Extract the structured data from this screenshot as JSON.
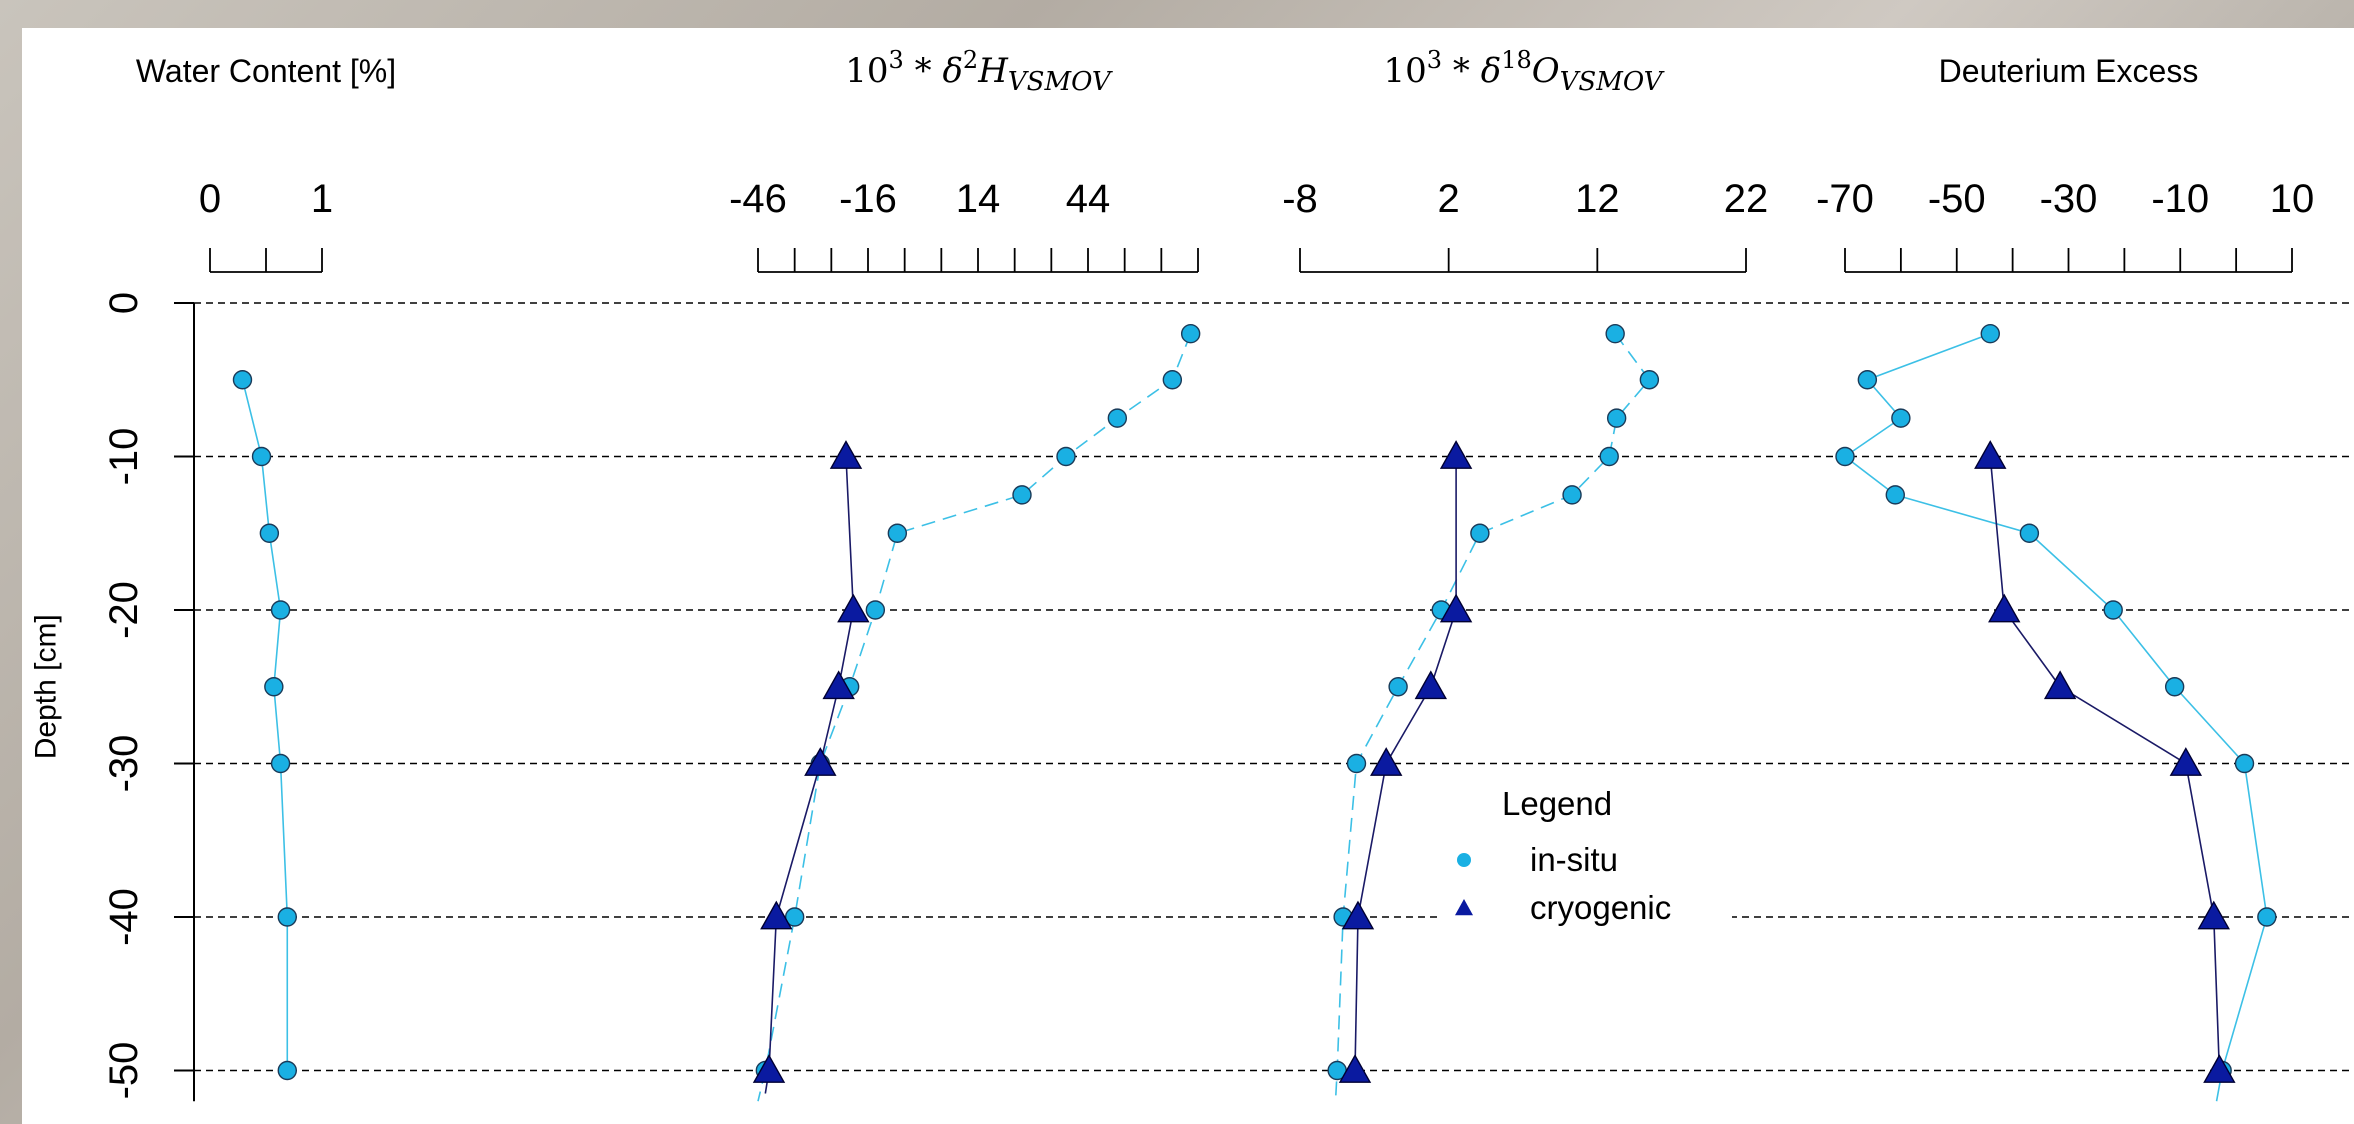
{
  "chart_data": {
    "type": "scatter",
    "ylabel": "Depth [cm]",
    "ylim": [
      -52,
      0
    ],
    "yticks": [
      0,
      -10,
      -20,
      -30,
      -40,
      -50
    ],
    "grid": "horizontal dashed at y ticks",
    "legend": {
      "title": "Legend",
      "placement": "center",
      "entries": [
        {
          "label": "in-situ",
          "marker": "circle",
          "color": "#1ab0e3"
        },
        {
          "label": "cryogenic",
          "marker": "triangle",
          "color": "#0a1aa0"
        }
      ]
    },
    "colors": {
      "in_situ": "#1ab0e3",
      "cryogenic": "#0a1aa0",
      "in_situ_line": "#3cc0e6",
      "cryogenic_line": "#1a1a66"
    },
    "panels": [
      {
        "title": "Water Content [%]",
        "title_format": "text",
        "xlim": [
          0,
          1
        ],
        "ticks": [
          0,
          0.5,
          1
        ],
        "tick_labels": [
          {
            "value": 0,
            "label": "0"
          },
          {
            "value": 1,
            "label": "1"
          }
        ],
        "series": [
          {
            "name": "in-situ",
            "marker": "circle",
            "line": "solid",
            "points": [
              [
                0.29,
                -5
              ],
              [
                0.46,
                -10
              ],
              [
                0.53,
                -15
              ],
              [
                0.63,
                -20
              ],
              [
                0.57,
                -25
              ],
              [
                0.63,
                -30
              ],
              [
                0.69,
                -40
              ],
              [
                0.69,
                -50
              ]
            ]
          }
        ]
      },
      {
        "title": "10^3 * δ^2H_VSMOV",
        "title_format": "math",
        "xlim": [
          -46,
          74
        ],
        "ticks": [
          -46,
          -36,
          -26,
          -16,
          -6,
          4,
          14,
          24,
          34,
          44,
          54,
          64,
          74
        ],
        "tick_labels": [
          {
            "value": -46,
            "label": "-46"
          },
          {
            "value": -16,
            "label": "-16"
          },
          {
            "value": 14,
            "label": "14"
          },
          {
            "value": 44,
            "label": "44"
          }
        ],
        "series": [
          {
            "name": "in-situ",
            "marker": "circle",
            "line": "dashed",
            "points": [
              [
                72,
                -2
              ],
              [
                67,
                -5
              ],
              [
                52,
                -7.5
              ],
              [
                38,
                -10
              ],
              [
                26,
                -12.5
              ],
              [
                -8,
                -15
              ],
              [
                -14,
                -20
              ],
              [
                -21,
                -25
              ],
              [
                -29,
                -30
              ],
              [
                -36,
                -40
              ],
              [
                -44,
                -50
              ],
              [
                -46,
                -52
              ]
            ]
          },
          {
            "name": "cryogenic",
            "marker": "triangle",
            "line": "solid",
            "points": [
              [
                -22,
                -10
              ],
              [
                -20,
                -20
              ],
              [
                -24,
                -25
              ],
              [
                -29,
                -30
              ],
              [
                -41,
                -40
              ],
              [
                -43,
                -50
              ],
              [
                -44,
                -51.5
              ]
            ]
          }
        ]
      },
      {
        "title": "10^3 * δ^18O_VSMOV",
        "title_format": "math",
        "xlim": [
          -8,
          22
        ],
        "ticks": [
          -8,
          2,
          12,
          22
        ],
        "tick_labels": [
          {
            "value": -8,
            "label": "-8"
          },
          {
            "value": 2,
            "label": "2"
          },
          {
            "value": 12,
            "label": "12"
          },
          {
            "value": 22,
            "label": "22"
          }
        ],
        "series": [
          {
            "name": "in-situ",
            "marker": "circle",
            "line": "dashed",
            "points": [
              [
                13.2,
                -2
              ],
              [
                15.5,
                -5
              ],
              [
                13.3,
                -7.5
              ],
              [
                12.8,
                -10
              ],
              [
                10.3,
                -12.5
              ],
              [
                4.1,
                -15
              ],
              [
                1.5,
                -20
              ],
              [
                -1.4,
                -25
              ],
              [
                -4.2,
                -30
              ],
              [
                -5.1,
                -40
              ],
              [
                -5.5,
                -50
              ],
              [
                -5.6,
                -51.8
              ]
            ]
          },
          {
            "name": "cryogenic",
            "marker": "triangle",
            "line": "solid",
            "points": [
              [
                2.5,
                -10
              ],
              [
                2.5,
                -20
              ],
              [
                0.8,
                -25
              ],
              [
                -2.2,
                -30
              ],
              [
                -4.1,
                -40
              ],
              [
                -4.3,
                -50
              ]
            ]
          }
        ]
      },
      {
        "title": "Deuterium Excess",
        "title_format": "text",
        "xlim": [
          -70,
          10
        ],
        "ticks": [
          -70,
          -60,
          -50,
          -40,
          -30,
          -20,
          -10,
          0,
          10
        ],
        "tick_labels": [
          {
            "value": -70,
            "label": "-70"
          },
          {
            "value": -50,
            "label": "-50"
          },
          {
            "value": -30,
            "label": "-30"
          },
          {
            "value": -10,
            "label": "-10"
          },
          {
            "value": 10,
            "label": "10"
          }
        ],
        "series": [
          {
            "name": "in-situ",
            "marker": "circle",
            "line": "solid",
            "points": [
              [
                -44,
                -2
              ],
              [
                -66,
                -5
              ],
              [
                -60,
                -7.5
              ],
              [
                -70,
                -10
              ],
              [
                -61,
                -12.5
              ],
              [
                -37,
                -15
              ],
              [
                -22,
                -20
              ],
              [
                -11,
                -25
              ],
              [
                1.5,
                -30
              ],
              [
                5.5,
                -40
              ],
              [
                -2.5,
                -50
              ],
              [
                -3.5,
                -52
              ]
            ]
          },
          {
            "name": "cryogenic",
            "marker": "triangle",
            "line": "solid",
            "points": [
              [
                -44,
                -10
              ],
              [
                -41.5,
                -20
              ],
              [
                -31.5,
                -25
              ],
              [
                -9,
                -30
              ],
              [
                -4,
                -40
              ],
              [
                -3,
                -50
              ]
            ]
          }
        ]
      }
    ]
  }
}
